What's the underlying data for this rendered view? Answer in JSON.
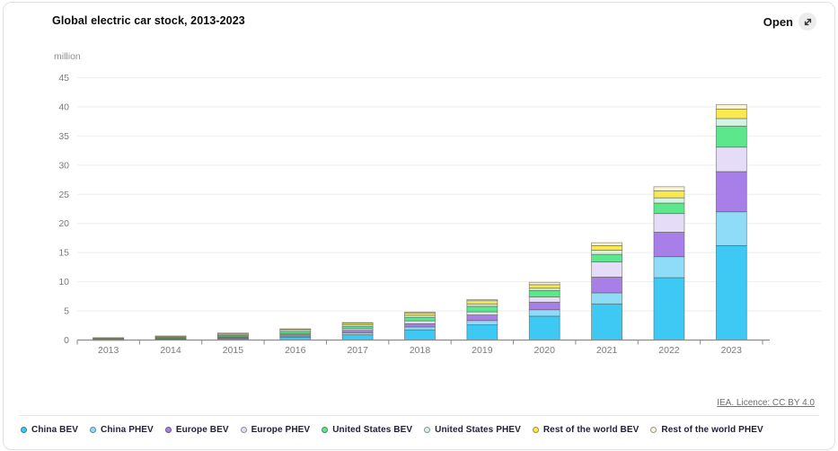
{
  "header": {
    "title": "Global electric car stock, 2013-2023",
    "open_label": "Open"
  },
  "attribution": {
    "text": "IEA. Licence: CC BY 4.0"
  },
  "chart_data": {
    "type": "bar",
    "stacked": true,
    "title": "Global electric car stock, 2013-2023",
    "unit_label": "million",
    "categories": [
      "2013",
      "2014",
      "2015",
      "2016",
      "2017",
      "2018",
      "2019",
      "2020",
      "2021",
      "2022",
      "2023"
    ],
    "series": [
      {
        "name": "China BEV",
        "color": "#3EC9F4",
        "values": [
          0.03,
          0.08,
          0.23,
          0.5,
          0.9,
          1.75,
          2.6,
          4.1,
          6.2,
          10.7,
          16.2
        ]
      },
      {
        "name": "China PHEV",
        "color": "#8FDCF8",
        "values": [
          0.01,
          0.02,
          0.08,
          0.17,
          0.35,
          0.5,
          0.75,
          1.1,
          1.9,
          3.6,
          5.8
        ]
      },
      {
        "name": "Europe BEV",
        "color": "#A87EE9",
        "values": [
          0.04,
          0.09,
          0.15,
          0.24,
          0.4,
          0.55,
          0.95,
          1.3,
          2.7,
          4.2,
          6.9
        ]
      },
      {
        "name": "Europe PHEV",
        "color": "#E5DDF8",
        "values": [
          0.03,
          0.06,
          0.12,
          0.17,
          0.3,
          0.5,
          0.55,
          0.9,
          2.6,
          3.2,
          4.2
        ]
      },
      {
        "name": "United States BEV",
        "color": "#5CE78D",
        "values": [
          0.1,
          0.15,
          0.2,
          0.3,
          0.4,
          0.6,
          0.95,
          1.1,
          1.3,
          1.8,
          3.6
        ]
      },
      {
        "name": "United States PHEV",
        "color": "#D4F3E3",
        "values": [
          0.07,
          0.12,
          0.19,
          0.26,
          0.3,
          0.36,
          0.4,
          0.4,
          0.7,
          0.9,
          1.3
        ]
      },
      {
        "name": "Rest of the world BEV",
        "color": "#FAE84F",
        "values": [
          0.1,
          0.14,
          0.18,
          0.22,
          0.25,
          0.4,
          0.55,
          0.6,
          0.8,
          1.2,
          1.6
        ]
      },
      {
        "name": "Rest of the world PHEV",
        "color": "#FBF5D8",
        "values": [
          0.02,
          0.03,
          0.05,
          0.07,
          0.1,
          0.15,
          0.2,
          0.4,
          0.5,
          0.7,
          0.8
        ]
      }
    ],
    "xlabel": "",
    "ylabel": "million",
    "ylim": [
      0,
      45
    ],
    "yticks": [
      0,
      5,
      10,
      15,
      20,
      25,
      30,
      35,
      40,
      45
    ],
    "grid": true,
    "legend_position": "bottom",
    "colors_meta": {
      "segment_border": "#50503F",
      "grid_line": "#eeeeee",
      "axis_line": "#8a8a8a",
      "tick_label": "#7b7b7b"
    }
  }
}
